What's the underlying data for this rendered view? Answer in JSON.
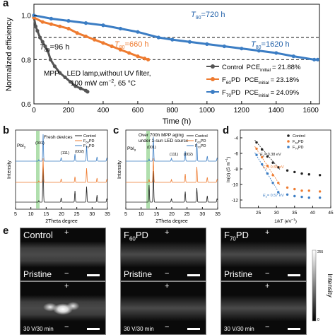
{
  "panels": {
    "a": "a",
    "b": "b",
    "c": "c",
    "d": "d",
    "e": "e"
  },
  "chart_data": [
    {
      "id": "a",
      "type": "line",
      "xlabel": "Time (h)",
      "ylabel": "Normalized efficiency",
      "xlim": [
        0,
        1650
      ],
      "ylim": [
        0.6,
        1.05
      ],
      "xticks": [
        0,
        200,
        400,
        600,
        800,
        1000,
        1200,
        1400,
        1600
      ],
      "yticks": [
        0.6,
        0.8,
        1.0
      ],
      "reference_lines": [
        0.9,
        0.8
      ],
      "series": [
        {
          "name": "Control",
          "color": "#555555",
          "marker": "circle",
          "x": [
            0,
            10,
            20,
            35,
            50,
            65,
            80,
            96,
            120,
            150,
            180,
            210,
            240,
            270,
            300,
            310
          ],
          "y": [
            0.99,
            0.95,
            0.93,
            0.9,
            0.88,
            0.86,
            0.84,
            0.8,
            0.77,
            0.74,
            0.72,
            0.7,
            0.68,
            0.67,
            0.66,
            0.655
          ]
        },
        {
          "name": "F60PD",
          "color": "#ee7b30",
          "marker": "circle",
          "x": [
            0,
            50,
            100,
            150,
            200,
            250,
            300,
            350,
            400,
            450,
            500,
            550,
            600,
            640,
            660
          ],
          "y": [
            0.99,
            0.97,
            0.96,
            0.95,
            0.94,
            0.92,
            0.905,
            0.89,
            0.875,
            0.86,
            0.845,
            0.83,
            0.815,
            0.805,
            0.8
          ]
        },
        {
          "name": "F70PD",
          "color": "#3b7dc4",
          "marker": "circle",
          "x": [
            0,
            100,
            200,
            300,
            400,
            500,
            600,
            720,
            800,
            900,
            1000,
            1100,
            1200,
            1300,
            1400,
            1500,
            1620,
            1640
          ],
          "y": [
            1.0,
            0.985,
            0.975,
            0.965,
            0.955,
            0.94,
            0.925,
            0.9,
            0.89,
            0.88,
            0.87,
            0.86,
            0.85,
            0.84,
            0.83,
            0.815,
            0.8,
            0.8
          ]
        }
      ],
      "annotations": {
        "t80_control": "96 h",
        "t80_f60": "660 h",
        "t90_f70": "720 h",
        "t80_f70": "1620 h",
        "condition_line1": "MPP    LED lamp,without UV filter,",
        "condition_line2": "100 mW cm",
        "condition_line2_sup": "−2",
        "condition_line2_end": ", 65 °C"
      },
      "legend": [
        {
          "label": "Control",
          "pce": "= 21.88%"
        },
        {
          "label": "F60PD",
          "pce": "= 23.18%"
        },
        {
          "label": "F70PD",
          "pce": "= 24.09%"
        }
      ],
      "legend_pce_label": "PCE",
      "legend_pce_sub": "initial",
      "legend_placement": "bottom-right"
    },
    {
      "id": "b",
      "type": "line",
      "title": "Fresh devices",
      "xlabel": "2Theta degree",
      "ylabel": "Intensity",
      "xlim": [
        5,
        35
      ],
      "xticks": [
        5,
        10,
        15,
        20,
        25,
        30,
        35
      ],
      "peak_labels": [
        "PbI2",
        "(001)",
        "(111)",
        "(002)"
      ],
      "peak_positions": [
        12.6,
        14.0,
        24.4,
        28.2
      ],
      "series": [
        {
          "name": "Control",
          "color": "#222222"
        },
        {
          "name": "F60PD",
          "color": "#ee7b30"
        },
        {
          "name": "F70PD",
          "color": "#3b7dc4"
        }
      ]
    },
    {
      "id": "c",
      "type": "line",
      "title_line1": "Over 700h MPP aging",
      "title_line2": "under 1-sun LED source",
      "xlabel": "2Theta degree",
      "ylabel": "Intensity",
      "xlim": [
        5,
        35
      ],
      "xticks": [
        5,
        10,
        15,
        20,
        25,
        30,
        35
      ],
      "peak_labels": [
        "PbI2",
        "(001)",
        "(111)",
        "(002)"
      ],
      "peak_positions": [
        12.6,
        14.0,
        24.4,
        28.2
      ],
      "series": [
        {
          "name": "Control",
          "color": "#222222"
        },
        {
          "name": "F60PD",
          "color": "#ee7b30"
        },
        {
          "name": "F70PD",
          "color": "#3b7dc4"
        }
      ]
    },
    {
      "id": "d",
      "type": "scatter",
      "xlabel": "1/kT (eV",
      "xlabel_sup": "−1",
      "xlabel_end": ")",
      "ylabel": "ln(σ) (S m",
      "ylabel_sup": "−1",
      "ylabel_end": ")",
      "xlim": [
        20,
        45
      ],
      "ylim": [
        -13,
        -3
      ],
      "xticks": [
        25,
        30,
        35,
        40,
        45
      ],
      "yticks": [
        -4,
        -6,
        -8,
        -10,
        -12
      ],
      "fit_labels": [
        "= 0.38 eV",
        "= 0.55 eV",
        "= 0.57 eV"
      ],
      "ea_label": "E",
      "ea_sub": "a",
      "series": [
        {
          "name": "Control",
          "color": "#222222",
          "x": [
            24.5,
            26,
            27.5,
            29,
            30.5,
            33,
            35,
            37,
            39,
            42
          ],
          "y": [
            -4.6,
            -5.5,
            -6.4,
            -7.2,
            -7.8,
            -8.2,
            -8.4,
            -8.6,
            -8.7,
            -8.8
          ]
        },
        {
          "name": "F60PD",
          "color": "#ee7b30",
          "x": [
            24.5,
            26,
            27.5,
            29,
            30.5,
            33,
            35,
            37,
            39,
            42
          ],
          "y": [
            -5.4,
            -6.5,
            -7.6,
            -8.8,
            -9.8,
            -10.4,
            -10.6,
            -10.8,
            -10.8,
            -10.9
          ]
        },
        {
          "name": "F70PD",
          "color": "#3b7dc4",
          "x": [
            24.5,
            26,
            27.5,
            29,
            30.5,
            33,
            35,
            37,
            39,
            42
          ],
          "y": [
            -6.2,
            -7.4,
            -8.6,
            -9.8,
            -11.0,
            -11.3,
            -11.5,
            -11.6,
            -11.7,
            -11.7
          ]
        }
      ]
    }
  ],
  "afm": {
    "tiles": [
      {
        "label": "Control",
        "bottom": "Pristine",
        "plus": "+",
        "minus": "−"
      },
      {
        "label": "F",
        "sub": "60",
        "label_end": "PD",
        "bottom": "Pristine",
        "plus": "+",
        "minus": "−"
      },
      {
        "label": "F",
        "sub": "70",
        "label_end": "PD",
        "bottom": "Pristine",
        "plus": "+",
        "minus": "−"
      },
      {
        "bottom": "30 V/30 min",
        "plus": "+",
        "minus": "−"
      },
      {
        "bottom": "30 V/30 min",
        "plus": "+",
        "minus": "−"
      },
      {
        "bottom": "30 V/30 min",
        "plus": "+",
        "minus": "−"
      }
    ],
    "colorbar_label": "Intensity",
    "colorbar_max": "255",
    "colorbar_min": "0"
  }
}
